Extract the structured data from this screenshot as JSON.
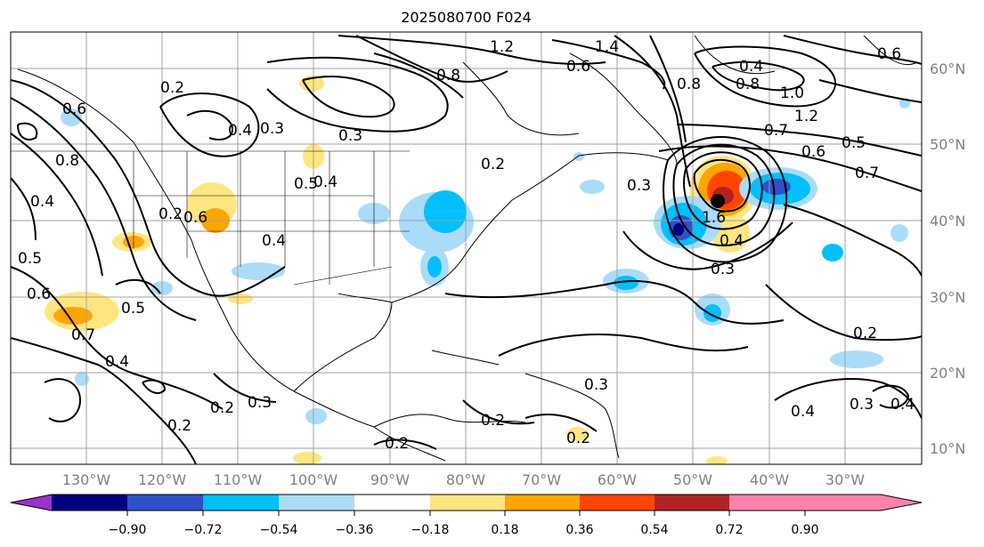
{
  "title": "2025080700 F024",
  "map": {
    "lat_labels": [
      "60°N",
      "50°N",
      "40°N",
      "30°N",
      "20°N",
      "10°N"
    ],
    "lon_labels": [
      "130°W",
      "120°W",
      "110°W",
      "100°W",
      "90°W",
      "80°W",
      "70°W",
      "60°W",
      "50°W",
      "40°W",
      "30°W"
    ],
    "contour_labels": [
      "1.2",
      "1.4",
      "0.8",
      "0.6",
      "0.8",
      "0.4",
      "0.6",
      "0.8",
      "1.0",
      "1.2",
      "0.7",
      "0.5",
      "0.6",
      "0.7",
      "0.2",
      "0.3",
      "0.4",
      "0.3",
      "0.4",
      "0.5",
      "0.2",
      "0.8",
      "0.4",
      "0.6",
      "0.5",
      "0.2",
      "0.4",
      "0.6",
      "0.7",
      "0.5",
      "0.4",
      "0.2",
      "0.3",
      "0.2",
      "0.3",
      "0.2",
      "0.2",
      "0.2",
      "0.3",
      "1.6",
      "0.4",
      "0.3",
      "0.2",
      "0.4",
      "0.3",
      "0.4",
      "0.6"
    ]
  },
  "colorbar": {
    "ticks": [
      "−0.90",
      "−0.72",
      "−0.54",
      "−0.36",
      "−0.18",
      "0.18",
      "0.36",
      "0.54",
      "0.72",
      "0.90"
    ],
    "colors": [
      "#9932cc",
      "#000080",
      "#3050c8",
      "#00bfff",
      "#aadcfa",
      "#ffffff",
      "#ffe680",
      "#ffa500",
      "#ff4500",
      "#b22222",
      "#ff82ab"
    ]
  }
}
